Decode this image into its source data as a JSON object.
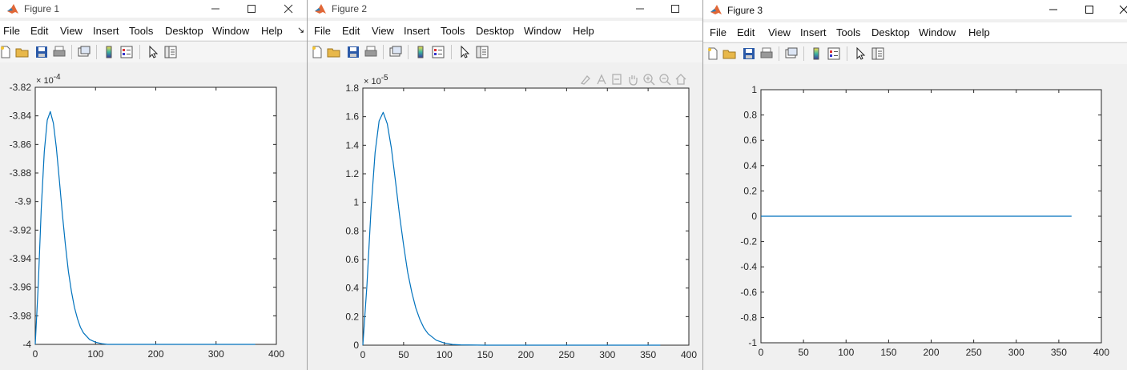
{
  "menu_items": [
    "File",
    "Edit",
    "View",
    "Insert",
    "Tools",
    "Desktop",
    "Window",
    "Help"
  ],
  "colors": {
    "line": "#0072bd",
    "axes_bg": "#ffffff",
    "figure_bg": "#f0f0f0"
  },
  "icons": [
    "matlab-logo-icon",
    "minimize-icon",
    "maximize-icon",
    "close-icon",
    "new-figure-icon",
    "open-file-icon",
    "save-icon",
    "print-icon",
    "link-plot-icon",
    "colorbar-icon",
    "legend-icon",
    "pointer-icon",
    "property-inspector-icon",
    "brush-icon",
    "data-tips-icon",
    "restore-view-icon",
    "pan-icon",
    "zoom-in-icon",
    "zoom-out-icon",
    "home-icon"
  ],
  "figures": [
    {
      "title": "Figure 1",
      "overflow_glyph": "↘",
      "show_close": true
    },
    {
      "title": "Figure 2",
      "overflow_glyph": "",
      "show_close": false
    },
    {
      "title": "Figure 3",
      "overflow_glyph": "",
      "show_close": true
    }
  ],
  "chart_data": [
    {
      "type": "line",
      "title": "",
      "xlabel": "",
      "ylabel": "",
      "exponent_label": "× 10^-4",
      "xlim": [
        0,
        400
      ],
      "ylim": [
        -4.0,
        -3.82
      ],
      "xticks": [
        0,
        100,
        200,
        300,
        400
      ],
      "xtick_labels": [
        "0",
        "100",
        "200",
        "300",
        "400"
      ],
      "yticks": [
        -3.82,
        -3.84,
        -3.86,
        -3.88,
        -3.9,
        -3.92,
        -3.94,
        -3.96,
        -3.98,
        -4.0
      ],
      "ytick_labels": [
        "-3.82",
        "-3.84",
        "-3.86",
        "-3.88",
        "-3.9",
        "-3.92",
        "-3.94",
        "-3.96",
        "-3.98",
        "-4"
      ],
      "grid": false,
      "series": [
        {
          "x": [
            0,
            5,
            10,
            15,
            20,
            25,
            30,
            35,
            40,
            45,
            50,
            55,
            60,
            65,
            70,
            75,
            80,
            90,
            100,
            110,
            120,
            150,
            200,
            250,
            300,
            365
          ],
          "y": [
            -4.0,
            -3.958,
            -3.905,
            -3.865,
            -3.843,
            -3.837,
            -3.845,
            -3.862,
            -3.885,
            -3.909,
            -3.93,
            -3.949,
            -3.963,
            -3.974,
            -3.982,
            -3.988,
            -3.992,
            -3.9965,
            -3.9985,
            -3.9995,
            -4.0,
            -4.0,
            -4.0,
            -4.0,
            -4.0,
            -4.0
          ]
        }
      ]
    },
    {
      "type": "line",
      "title": "",
      "xlabel": "",
      "ylabel": "",
      "exponent_label": "× 10^-5",
      "xlim": [
        0,
        400
      ],
      "ylim": [
        0,
        1.8
      ],
      "xticks": [
        0,
        50,
        100,
        150,
        200,
        250,
        300,
        350,
        400
      ],
      "xtick_labels": [
        "0",
        "50",
        "100",
        "150",
        "200",
        "250",
        "300",
        "350",
        "400"
      ],
      "yticks": [
        0,
        0.2,
        0.4,
        0.6,
        0.8,
        1,
        1.2,
        1.4,
        1.6,
        1.8
      ],
      "ytick_labels": [
        "0",
        "0.2",
        "0.4",
        "0.6",
        "0.8",
        "1",
        "1.2",
        "1.4",
        "1.6",
        "1.8"
      ],
      "grid": false,
      "series": [
        {
          "x": [
            0,
            5,
            10,
            15,
            20,
            25,
            30,
            35,
            40,
            45,
            50,
            55,
            60,
            65,
            70,
            75,
            80,
            90,
            100,
            110,
            120,
            150,
            200,
            250,
            300,
            365
          ],
          "y": [
            0,
            0.42,
            0.95,
            1.35,
            1.57,
            1.63,
            1.55,
            1.38,
            1.15,
            0.91,
            0.7,
            0.51,
            0.37,
            0.26,
            0.18,
            0.12,
            0.08,
            0.035,
            0.015,
            0.005,
            0.002,
            0,
            0,
            0,
            0,
            0
          ]
        }
      ]
    },
    {
      "type": "line",
      "title": "",
      "xlabel": "",
      "ylabel": "",
      "exponent_label": "",
      "xlim": [
        0,
        400
      ],
      "ylim": [
        -1,
        1
      ],
      "xticks": [
        0,
        50,
        100,
        150,
        200,
        250,
        300,
        350,
        400
      ],
      "xtick_labels": [
        "0",
        "50",
        "100",
        "150",
        "200",
        "250",
        "300",
        "350",
        "400"
      ],
      "yticks": [
        1,
        0.8,
        0.6,
        0.4,
        0.2,
        0,
        -0.2,
        -0.4,
        -0.6,
        -0.8,
        -1
      ],
      "ytick_labels": [
        "1",
        "0.8",
        "0.6",
        "0.4",
        "0.2",
        "0",
        "-0.2",
        "-0.4",
        "-0.6",
        "-0.8",
        "-1"
      ],
      "grid": false,
      "series": [
        {
          "x": [
            0,
            365
          ],
          "y": [
            0,
            0
          ]
        }
      ]
    }
  ]
}
